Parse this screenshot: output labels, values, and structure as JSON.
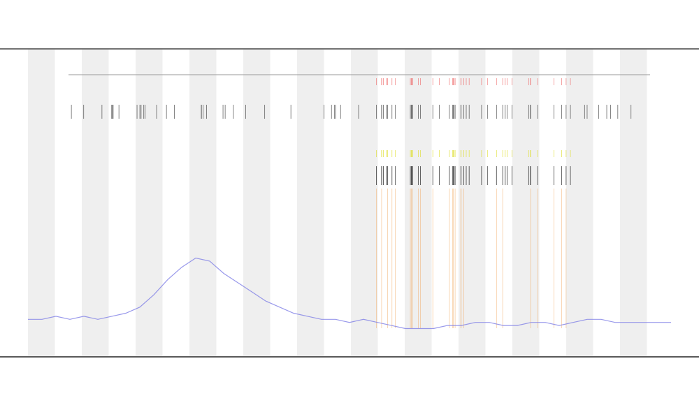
{
  "chart_data": {
    "type": "line",
    "series": [
      {
        "color": "#7f7fe6",
        "values": [
          12,
          12,
          13,
          12,
          13,
          12,
          13,
          14,
          16,
          20,
          25,
          29,
          32,
          31,
          27,
          24,
          21,
          18,
          16,
          14,
          13,
          12,
          12,
          11,
          12,
          11,
          10,
          9,
          9,
          9,
          10,
          10,
          11,
          11,
          10,
          10,
          11,
          11,
          10,
          11,
          12,
          12,
          11,
          11,
          11,
          11,
          11
        ]
      }
    ],
    "ylim": [
      0,
      100
    ]
  }
}
